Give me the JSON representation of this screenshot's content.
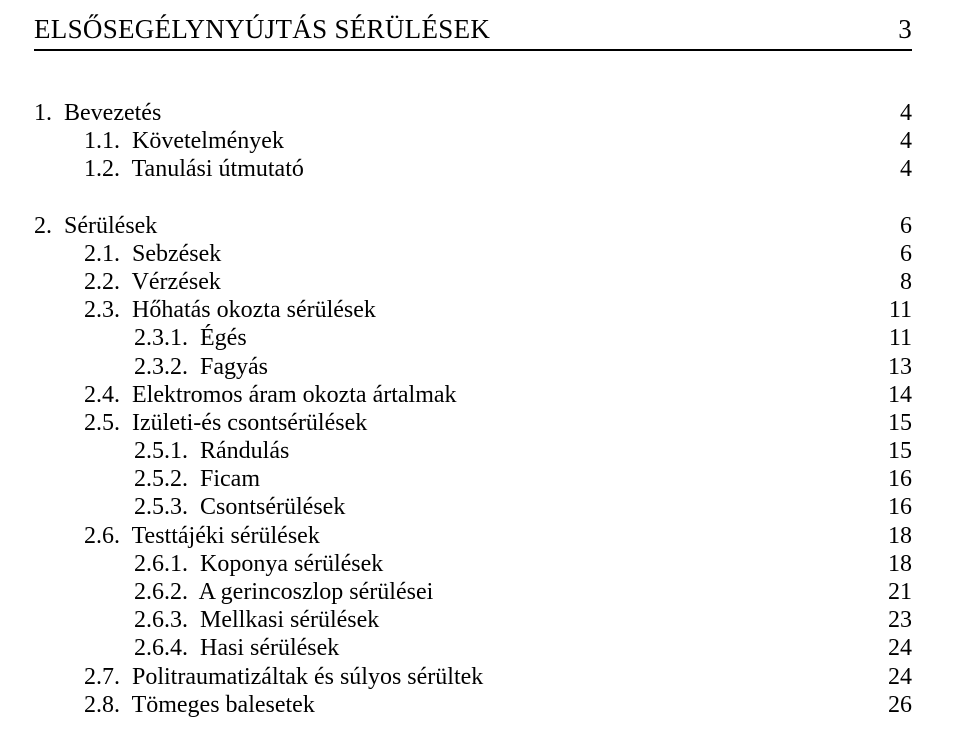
{
  "header": {
    "title": "ELSŐSEGÉLYNYÚJTÁS SÉRÜLÉSEK",
    "page_number": "3"
  },
  "toc": {
    "sections": [
      {
        "rows": [
          {
            "indent": 0,
            "label": "1.  Bevezetés",
            "page": "4"
          },
          {
            "indent": 1,
            "label": "1.1.  Követelmények",
            "page": "4"
          },
          {
            "indent": 1,
            "label": "1.2.  Tanulási útmutató",
            "page": "4"
          }
        ]
      },
      {
        "rows": [
          {
            "indent": 0,
            "label": "2.  Sérülések",
            "page": "6"
          },
          {
            "indent": 1,
            "label": "2.1.  Sebzések",
            "page": "6"
          },
          {
            "indent": 1,
            "label": "2.2.  Vérzések",
            "page": "8"
          },
          {
            "indent": 1,
            "label": "2.3.  Hőhatás okozta sérülések",
            "page": "11"
          },
          {
            "indent": 2,
            "label": "2.3.1.  Égés",
            "page": "11"
          },
          {
            "indent": 2,
            "label": "2.3.2.  Fagyás",
            "page": "13"
          },
          {
            "indent": 1,
            "label": "2.4.  Elektromos áram okozta ártalmak",
            "page": "14"
          },
          {
            "indent": 1,
            "label": "2.5.  Izületi-és csontsérülések",
            "page": "15"
          },
          {
            "indent": 2,
            "label": "2.5.1.  Rándulás",
            "page": "15"
          },
          {
            "indent": 2,
            "label": "2.5.2.  Ficam",
            "page": "16"
          },
          {
            "indent": 2,
            "label": "2.5.3.  Csontsérülések",
            "page": "16"
          },
          {
            "indent": 1,
            "label": "2.6.  Testtájéki sérülések",
            "page": "18"
          },
          {
            "indent": 2,
            "label": "2.6.1.  Koponya sérülések",
            "page": "18"
          },
          {
            "indent": 2,
            "label": "2.6.2.  A gerincoszlop sérülései",
            "page": "21"
          },
          {
            "indent": 2,
            "label": "2.6.3.  Mellkasi sérülések",
            "page": "23"
          },
          {
            "indent": 2,
            "label": "2.6.4.  Hasi sérülések",
            "page": "24"
          },
          {
            "indent": 1,
            "label": "2.7.  Politraumatizáltak és súlyos sérültek",
            "page": "24"
          },
          {
            "indent": 1,
            "label": "2.8.  Tömeges balesetek",
            "page": "26"
          }
        ]
      }
    ]
  }
}
